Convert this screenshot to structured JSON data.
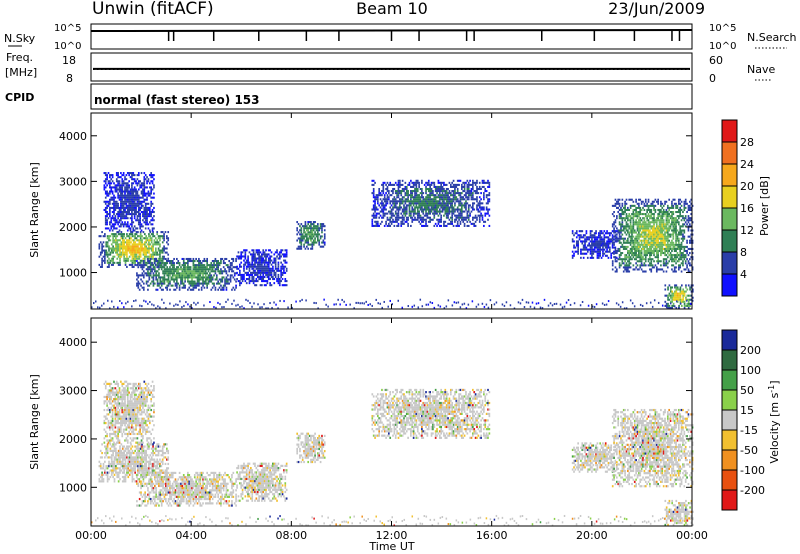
{
  "header": {
    "station": "Unwin (fitACF)",
    "beam": "Beam 10",
    "date": "23/Jun/2009"
  },
  "status_panels": {
    "nsky": {
      "label": "N.Sky",
      "left_ticks": [
        "10^5",
        "10^0"
      ],
      "right_ticks": [
        "10^5",
        "10^0"
      ],
      "right_label": "N.Search",
      "dropouts_hours": [
        3.1,
        3.3,
        4.9,
        6.7,
        8.6,
        9.9,
        12.0,
        13.1,
        15.0,
        15.3,
        18.0,
        20.1,
        21.7,
        23.2,
        23.5
      ]
    },
    "freq": {
      "label": "Freq.",
      "unit": "[MHz]",
      "left_ticks": [
        "18",
        "8"
      ],
      "right_ticks": [
        "60",
        "0"
      ],
      "right_label": "Nave",
      "freq_level_mhz": 12.2,
      "nave_level": 24
    },
    "cpid": {
      "label": "CPID",
      "text": "normal (fast stereo) 153"
    }
  },
  "chart_data": [
    {
      "type": "heatmap",
      "panel": "power",
      "title": "",
      "xlabel": "",
      "ylabel": "Slant Range [km]",
      "xlim": [
        0,
        24
      ],
      "ylim": [
        200,
        4500
      ],
      "y_ticks": [
        1000,
        2000,
        3000,
        4000
      ],
      "colorbar": {
        "label": "Power [dB]",
        "ticks": [
          "4",
          "8",
          "12",
          "16",
          "20",
          "24",
          "28"
        ],
        "colors": [
          "#1010ff",
          "#2a3ea8",
          "#2f7f55",
          "#6bb85f",
          "#e8d020",
          "#f6a81c",
          "#f07020",
          "#e01818"
        ]
      },
      "echo_regions": [
        {
          "t0": 0.3,
          "t1": 3.1,
          "r0": 1100,
          "r1": 1900,
          "level": 5
        },
        {
          "t0": 0.5,
          "t1": 2.5,
          "r0": 1900,
          "r1": 3200,
          "level": 1
        },
        {
          "t0": 1.8,
          "t1": 5.8,
          "r0": 600,
          "r1": 1300,
          "level": 3
        },
        {
          "t0": 5.8,
          "t1": 7.8,
          "r0": 700,
          "r1": 1500,
          "level": 1
        },
        {
          "t0": 8.2,
          "t1": 9.3,
          "r0": 1500,
          "r1": 2100,
          "level": 3
        },
        {
          "t0": 11.2,
          "t1": 15.9,
          "r0": 2000,
          "r1": 3000,
          "level": 2
        },
        {
          "t0": 19.2,
          "t1": 21.0,
          "r0": 1300,
          "r1": 1900,
          "level": 1
        },
        {
          "t0": 20.8,
          "t1": 24.0,
          "r0": 1000,
          "r1": 2600,
          "level": 4
        },
        {
          "t0": 22.9,
          "t1": 24.0,
          "r0": 200,
          "r1": 700,
          "level": 5
        }
      ]
    },
    {
      "type": "heatmap",
      "panel": "velocity",
      "title": "",
      "xlabel": "Time UT",
      "ylabel": "Slant Range [km]",
      "xlim": [
        0,
        24
      ],
      "ylim": [
        200,
        4500
      ],
      "y_ticks": [
        1000,
        2000,
        3000,
        4000
      ],
      "x_ticks": [
        "00:00",
        "04:00",
        "08:00",
        "12:00",
        "16:00",
        "20:00",
        "00:00"
      ],
      "colorbar": {
        "label": "Velocity [m s",
        "label_sup": "-1",
        "label_end": "]",
        "ticks": [
          "200",
          "100",
          "50",
          "15",
          "-15",
          "-50",
          "-100",
          "-200"
        ],
        "colors": [
          "#1a2a9a",
          "#2f6a40",
          "#44a048",
          "#8ad04a",
          "#c8c8c8",
          "#f2c030",
          "#f09020",
          "#e85010",
          "#e01818"
        ]
      },
      "echo_regions": [
        {
          "t0": 0.3,
          "t1": 3.1,
          "r0": 1100,
          "r1": 1900
        },
        {
          "t0": 0.5,
          "t1": 2.5,
          "r0": 1900,
          "r1": 3200
        },
        {
          "t0": 1.8,
          "t1": 5.8,
          "r0": 600,
          "r1": 1300
        },
        {
          "t0": 5.8,
          "t1": 7.8,
          "r0": 700,
          "r1": 1500
        },
        {
          "t0": 8.2,
          "t1": 9.3,
          "r0": 1500,
          "r1": 2100
        },
        {
          "t0": 11.2,
          "t1": 15.9,
          "r0": 2000,
          "r1": 3000
        },
        {
          "t0": 19.2,
          "t1": 21.0,
          "r0": 1300,
          "r1": 1900
        },
        {
          "t0": 20.8,
          "t1": 24.0,
          "r0": 1000,
          "r1": 2600
        },
        {
          "t0": 22.9,
          "t1": 24.0,
          "r0": 200,
          "r1": 700
        }
      ]
    }
  ]
}
